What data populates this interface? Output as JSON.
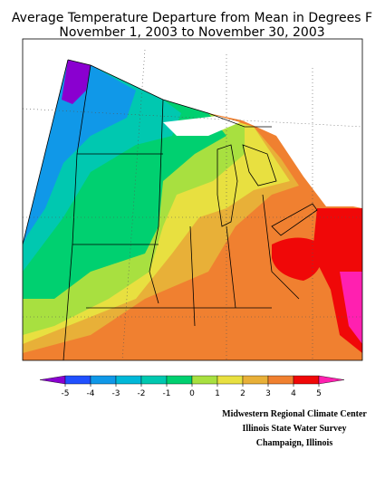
{
  "map": {
    "title_lines": [
      "Average Temperature Departure from Mean in Degrees F",
      "November 1, 2003 to November 30, 2003"
    ],
    "colorbar": {
      "ticks": [
        -5,
        -4,
        -3,
        -2,
        -1,
        0,
        1,
        2,
        3,
        4,
        5
      ],
      "colors": [
        "#8a00d0",
        "#2050ff",
        "#1098e8",
        "#00b8d8",
        "#00c8b0",
        "#00d070",
        "#a8e040",
        "#e8e040",
        "#e8b038",
        "#f08030",
        "#f00808",
        "#ff20b0"
      ]
    },
    "credits": [
      "Midwestern Regional Climate Center",
      "Illinois State Water Survey",
      "Champaign, Illinois"
    ]
  }
}
